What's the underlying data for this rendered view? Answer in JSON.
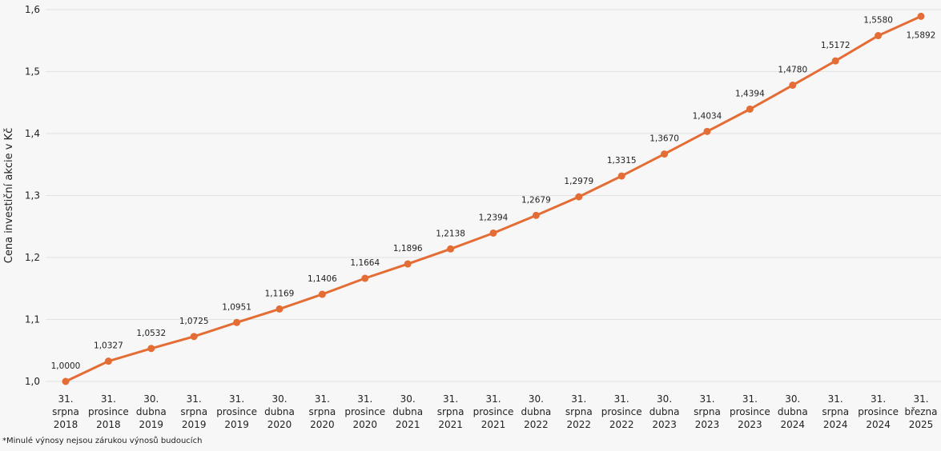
{
  "chart_data": {
    "type": "line",
    "ylabel": "Cena investiční akcie v Kč",
    "xlabel": "",
    "ylim": [
      1.0,
      1.6
    ],
    "yticks": [
      "1,0",
      "1,1",
      "1,2",
      "1,3",
      "1,4",
      "1,5",
      "1,6"
    ],
    "ytick_values": [
      1.0,
      1.1,
      1.2,
      1.3,
      1.4,
      1.5,
      1.6
    ],
    "grid": true,
    "line_color": "#e46c35",
    "categories": [
      [
        "31.",
        "srpna",
        "2018"
      ],
      [
        "31.",
        "prosince",
        "2018"
      ],
      [
        "30.",
        "dubna",
        "2019"
      ],
      [
        "31.",
        "srpna",
        "2019"
      ],
      [
        "31.",
        "prosince",
        "2019"
      ],
      [
        "30.",
        "dubna",
        "2020"
      ],
      [
        "31.",
        "srpna",
        "2020"
      ],
      [
        "31.",
        "prosince",
        "2020"
      ],
      [
        "30.",
        "dubna",
        "2021"
      ],
      [
        "31.",
        "srpna",
        "2021"
      ],
      [
        "31.",
        "prosince",
        "2021"
      ],
      [
        "30.",
        "dubna",
        "2022"
      ],
      [
        "31.",
        "srpna",
        "2022"
      ],
      [
        "31.",
        "prosince",
        "2022"
      ],
      [
        "30.",
        "dubna",
        "2023"
      ],
      [
        "31.",
        "srpna",
        "2023"
      ],
      [
        "31.",
        "prosince",
        "2023"
      ],
      [
        "30.",
        "dubna",
        "2024"
      ],
      [
        "31.",
        "srpna",
        "2024"
      ],
      [
        "31.",
        "prosince",
        "2024"
      ],
      [
        "31.",
        "března",
        "2025"
      ]
    ],
    "values": [
      1.0,
      1.0327,
      1.0532,
      1.0725,
      1.0951,
      1.1169,
      1.1406,
      1.1664,
      1.1896,
      1.2138,
      1.2394,
      1.2679,
      1.2979,
      1.3315,
      1.367,
      1.4034,
      1.4394,
      1.478,
      1.5172,
      1.558,
      1.5892
    ],
    "data_labels": [
      "1,0000",
      "1,0327",
      "1,0532",
      "1,0725",
      "1,0951",
      "1,1169",
      "1,1406",
      "1,1664",
      "1,1896",
      "1,2138",
      "1,2394",
      "1,2679",
      "1,2979",
      "1,3315",
      "1,3670",
      "1,4034",
      "1,4394",
      "1,4780",
      "1,5172",
      "1,5580",
      "1,5892"
    ]
  },
  "footnote": "*Minulé výnosy nejsou zárukou výnosů budoucích"
}
